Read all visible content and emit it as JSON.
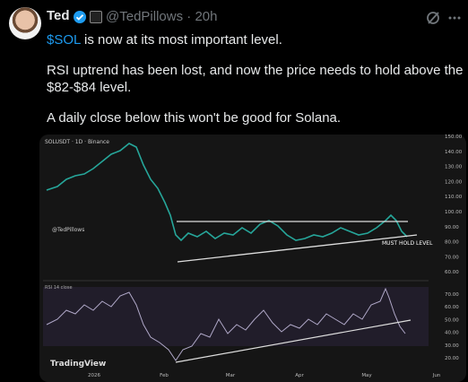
{
  "tweet": {
    "author": {
      "name": "Ted",
      "handle": "@TedPillows",
      "time": "20h"
    },
    "body": {
      "line1": {
        "ticker": "$SOL",
        "text": " is now at its most important level."
      },
      "line2": "RSI uptrend has been lost, and now the price needs to hold above the",
      "line3": "$82-$84 level.",
      "line4": "A daily close below this won't be good for Solana."
    },
    "chart": {
      "title": "SOLUSDT · 1D · Binance",
      "watermark": "@TedPillows",
      "annotation": "MUST HOLD LEVEL",
      "rsi_label": "RSI 14 close",
      "logo": "TradingView",
      "price_ticks": [
        "150.00",
        "140.00",
        "130.00",
        "120.00",
        "110.00",
        "100.00",
        "90.00",
        "80.00",
        "70.00",
        "60.00"
      ],
      "rsi_ticks": [
        "70.00",
        "60.00",
        "50.00",
        "40.00",
        "30.00",
        "20.00"
      ],
      "months": [
        "2026",
        "Feb",
        "Mar",
        "Apr",
        "May",
        "Jun"
      ]
    }
  }
}
